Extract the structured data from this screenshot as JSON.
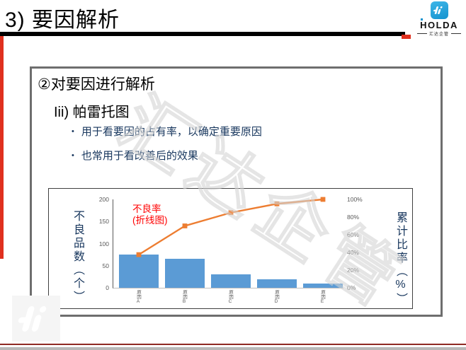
{
  "slide": {
    "title": "3) 要因解析",
    "logo": {
      "name": "HOLDA",
      "tagline": "汇达企管"
    },
    "box": {
      "heading": "②对要因进行解析",
      "subheading": "Iii) 帕雷托图",
      "bullets": [
        "用于看要因的占有率，以确定重要原因",
        "也常用于看改善后的效果"
      ]
    },
    "watermark_text": "汇达企管"
  },
  "chart_data": {
    "type": "bar",
    "subtype": "pareto (bar + cumulative line)",
    "categories": [
      "原因A",
      "原因B",
      "原因C",
      "原因D",
      "原因E"
    ],
    "series": [
      {
        "name": "不良品数",
        "type": "bar",
        "values": [
          75,
          65,
          30,
          20,
          10
        ],
        "color": "#5b9bd5"
      },
      {
        "name": "累计比率",
        "type": "line",
        "values_pct": [
          37.5,
          70,
          85,
          95,
          100
        ],
        "color": "#ed7d31"
      }
    ],
    "left_axis": {
      "label": "不良品数（个）",
      "ticks": [
        0,
        50,
        100,
        150,
        200
      ],
      "lim": [
        0,
        200
      ]
    },
    "right_axis": {
      "label": "累计比率（%）",
      "ticks": [
        "0%",
        "20%",
        "40%",
        "60%",
        "80%",
        "100%"
      ],
      "lim": [
        0,
        100
      ]
    },
    "annotation": {
      "line1": "不良率",
      "line2": "(折线图)",
      "color": "#ff0000"
    },
    "grid": false,
    "legend": "none"
  }
}
